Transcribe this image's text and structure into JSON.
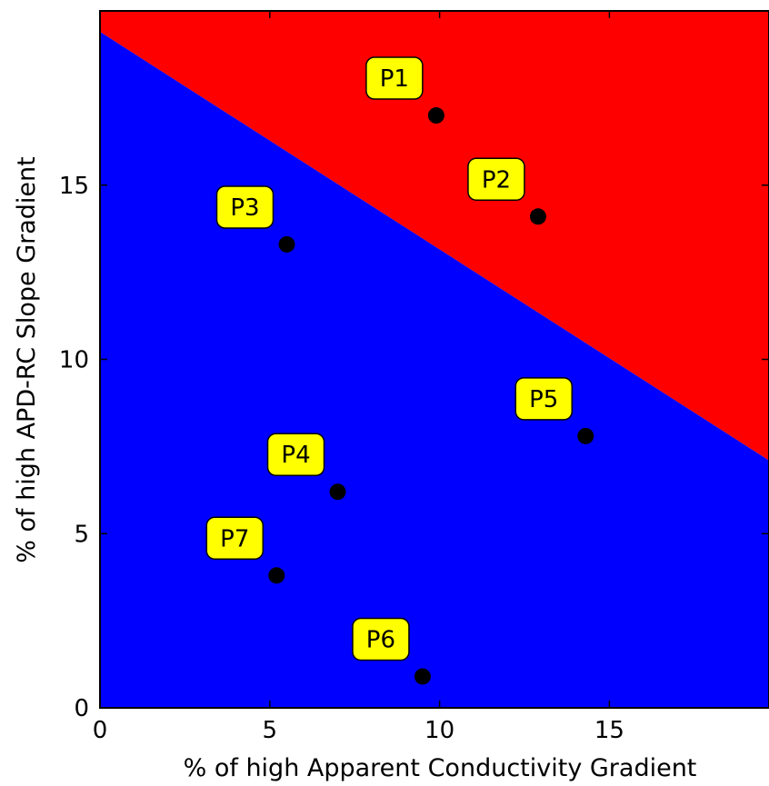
{
  "chart_data": {
    "type": "scatter",
    "title": "",
    "xlabel": "% of high Apparent Conductivity Gradient",
    "ylabel": "% of high APD-RC Slope Gradient",
    "xlim": [
      0,
      19.7
    ],
    "ylim": [
      0,
      20
    ],
    "xticks": [
      0,
      5,
      10,
      15
    ],
    "yticks": [
      0,
      5,
      10,
      15
    ],
    "grid": false,
    "regions": [
      {
        "name": "upper",
        "color": "#ff0000"
      },
      {
        "name": "lower",
        "color": "#0000ff"
      }
    ],
    "decision_boundary": {
      "x": [
        0,
        19.7
      ],
      "y": [
        19.4,
        7.1
      ]
    },
    "point_color": "#000000",
    "label_box_color": "#ffff00",
    "points": [
      {
        "label": "P1",
        "x": 9.9,
        "y": 17.0
      },
      {
        "label": "P2",
        "x": 12.9,
        "y": 14.1
      },
      {
        "label": "P3",
        "x": 5.5,
        "y": 13.3
      },
      {
        "label": "P4",
        "x": 7.0,
        "y": 6.2
      },
      {
        "label": "P5",
        "x": 14.3,
        "y": 7.8
      },
      {
        "label": "P6",
        "x": 9.5,
        "y": 0.9
      },
      {
        "label": "P7",
        "x": 5.2,
        "y": 3.8
      }
    ]
  }
}
